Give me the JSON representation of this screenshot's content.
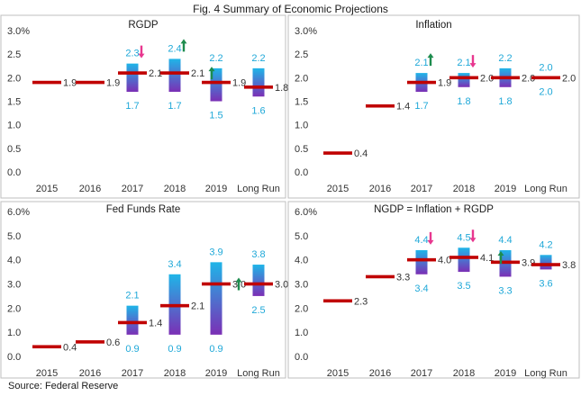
{
  "figure_title": "Fig. 4 Summary  of Economic Projections",
  "source": "Source:  Federal Reserve",
  "colors": {
    "median": "#c00000",
    "range_top": "#1fb5e8",
    "range_bottom": "#7b2fb5",
    "up_arrow": "#1e8c4e",
    "down_arrow": "#e8378f",
    "range_label": "#1fa8d8",
    "value_label": "#333333",
    "frame": "#bfbfbf"
  },
  "chart_data": [
    {
      "type": "bar",
      "title": "RGDP",
      "categories": [
        "2015",
        "2016",
        "2017",
        "2018",
        "2019",
        "Long Run"
      ],
      "ytick_labels": [
        "0.0",
        "0.5",
        "1.0",
        "1.5",
        "2.0",
        "2.5",
        "3.0%"
      ],
      "ylim": [
        0,
        3
      ],
      "median": [
        1.9,
        1.9,
        2.1,
        2.1,
        1.9,
        1.8
      ],
      "median_labels": [
        "1.9",
        "1.9",
        "2.1",
        "2.1",
        "1.9",
        "1.8"
      ],
      "range_high": [
        null,
        null,
        2.3,
        2.4,
        2.2,
        2.2
      ],
      "range_low": [
        null,
        null,
        1.7,
        1.7,
        1.5,
        1.6
      ],
      "high_labels": [
        "",
        "",
        "2.3",
        "2.4",
        "2.2",
        "2.2"
      ],
      "low_labels": [
        "",
        "",
        "1.7",
        "1.7",
        "1.5",
        "1.6"
      ],
      "arrows": [
        {
          "category": "2017",
          "direction": "down",
          "position": "range-top"
        },
        {
          "category": "2018",
          "direction": "up",
          "position": "range-top"
        },
        {
          "category": "2018",
          "direction": "up",
          "position": "median"
        }
      ]
    },
    {
      "type": "bar",
      "title": "Inflation",
      "categories": [
        "2015",
        "2016",
        "2017",
        "2018",
        "2019",
        "Long Run"
      ],
      "ytick_labels": [
        "0.0",
        "0.5",
        "1.0",
        "1.5",
        "2.0",
        "2.5",
        "3.0%"
      ],
      "ylim": [
        0,
        3
      ],
      "median": [
        0.4,
        1.4,
        1.9,
        2.0,
        2.0,
        2.0
      ],
      "median_labels": [
        "0.4",
        "1.4",
        "1.9",
        "2.0",
        "2.0",
        "2.0"
      ],
      "range_high": [
        null,
        null,
        2.1,
        2.1,
        2.2,
        null
      ],
      "range_low": [
        null,
        null,
        1.7,
        1.8,
        1.8,
        null
      ],
      "high_labels": [
        "",
        "",
        "2.1",
        "2.1",
        "2.2",
        "2.0"
      ],
      "low_labels": [
        "",
        "",
        "1.7",
        "1.8",
        "1.8",
        "2.0"
      ],
      "arrows": [
        {
          "category": "2017",
          "direction": "up",
          "position": "range-top"
        },
        {
          "category": "2018",
          "direction": "down",
          "position": "range-top"
        }
      ]
    },
    {
      "type": "bar",
      "title": "Fed Funds Rate",
      "categories": [
        "2015",
        "2016",
        "2017",
        "2018",
        "2019",
        "Long Run"
      ],
      "ytick_labels": [
        "0.0",
        "1.0",
        "2.0",
        "3.0",
        "4.0",
        "5.0",
        "6.0%"
      ],
      "ylim": [
        0,
        6
      ],
      "median": [
        0.4,
        0.6,
        1.4,
        2.1,
        3.0,
        3.0
      ],
      "median_labels": [
        "0.4",
        "0.6",
        "1.4",
        "2.1",
        "3.0",
        "3.0"
      ],
      "range_high": [
        null,
        null,
        2.1,
        3.4,
        3.9,
        3.8
      ],
      "range_low": [
        null,
        null,
        0.9,
        0.9,
        0.9,
        2.5
      ],
      "high_labels": [
        "",
        "",
        "2.1",
        "3.4",
        "3.9",
        "3.8"
      ],
      "low_labels": [
        "",
        "",
        "0.9",
        "0.9",
        "0.9",
        "2.5"
      ],
      "arrows": [
        {
          "category": "Long Run",
          "direction": "up",
          "position": "median-left"
        }
      ]
    },
    {
      "type": "bar",
      "title": "NGDP = Inflation + RGDP",
      "categories": [
        "2015",
        "2016",
        "2017",
        "2018",
        "2019",
        "Long Run"
      ],
      "ytick_labels": [
        "0.0",
        "1.0",
        "2.0",
        "3.0",
        "4.0",
        "5.0",
        "6.0%"
      ],
      "ylim": [
        0,
        6
      ],
      "median": [
        2.3,
        3.3,
        4.0,
        4.1,
        3.9,
        3.8
      ],
      "median_labels": [
        "2.3",
        "3.3",
        "4.0",
        "4.1",
        "3.9",
        "3.8"
      ],
      "range_high": [
        null,
        null,
        4.4,
        4.5,
        4.4,
        4.2
      ],
      "range_low": [
        null,
        null,
        3.4,
        3.5,
        3.3,
        3.6
      ],
      "high_labels": [
        "",
        "",
        "4.4",
        "4.5",
        "4.4",
        "4.2"
      ],
      "low_labels": [
        "",
        "",
        "3.4",
        "3.5",
        "3.3",
        "3.6"
      ],
      "arrows": [
        {
          "category": "2017",
          "direction": "down",
          "position": "range-top"
        },
        {
          "category": "2018",
          "direction": "down",
          "position": "range-top"
        },
        {
          "category": "2018",
          "direction": "up",
          "position": "median"
        }
      ]
    }
  ]
}
